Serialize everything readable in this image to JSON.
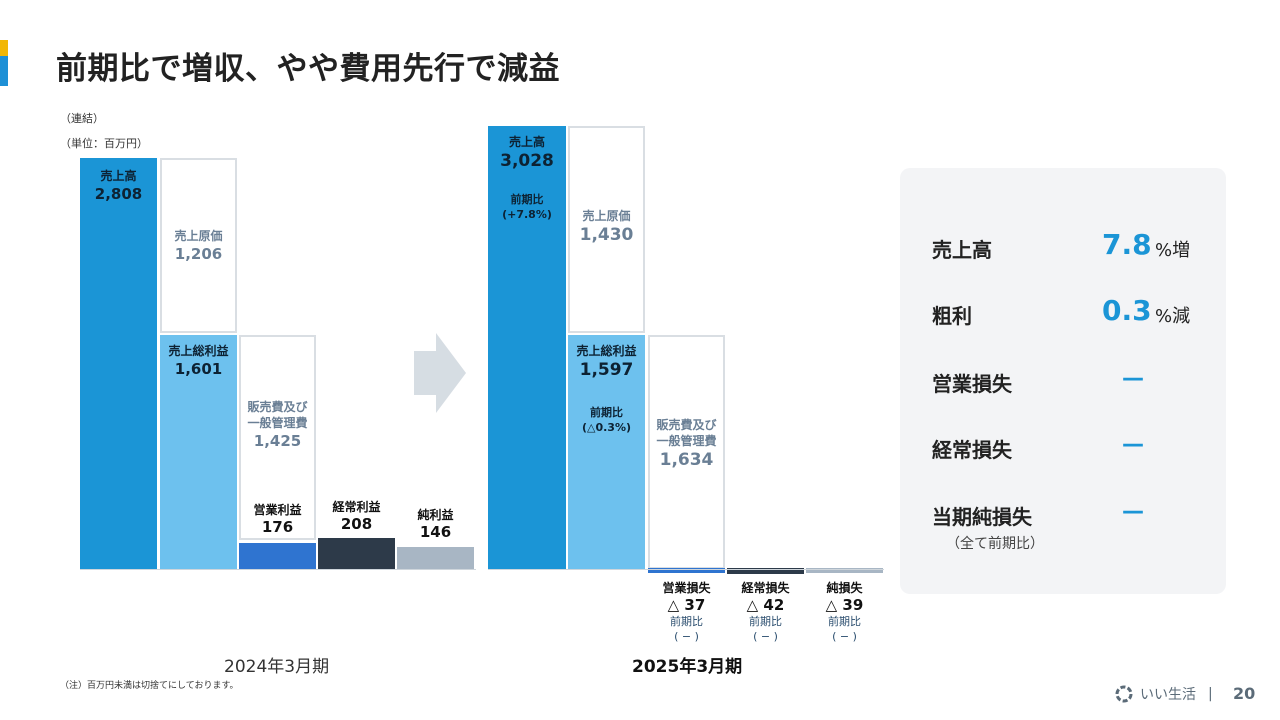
{
  "title": "前期比で増収、やや費用先行で減益",
  "unit_consolidated": "（連結）",
  "unit_label": "（単位：百万円）",
  "colors": {
    "revenue": "#1b95d6",
    "gross_profit": "#6dc1ee",
    "operating": "#2f74d0",
    "ordinary": "#2d3a49",
    "net": "#a8b6c4",
    "outline": "#d9dee3"
  },
  "chart_data": {
    "type": "bar",
    "title": "前期比で増収、やや費用先行で減益",
    "unit": "百万円",
    "periods": [
      {
        "label": "2024年3月期",
        "revenue": {
          "name": "売上高",
          "value": "2,808"
        },
        "cogs": {
          "name": "売上原価",
          "value": "1,206"
        },
        "gross_profit": {
          "name": "売上総利益",
          "value": "1,601"
        },
        "sga": {
          "name_1": "販売費及び",
          "name_2": "一般管理費",
          "value": "1,425"
        },
        "operating": {
          "name": "営業利益",
          "value": "176"
        },
        "ordinary": {
          "name": "経常利益",
          "value": "208"
        },
        "net": {
          "name": "純利益",
          "value": "146"
        }
      },
      {
        "label": "2025年3月期",
        "revenue": {
          "name": "売上高",
          "value": "3,028",
          "yoy_label": "前期比",
          "yoy": "(+7.8%)"
        },
        "cogs": {
          "name": "売上原価",
          "value": "1,430"
        },
        "gross_profit": {
          "name": "売上総利益",
          "value": "1,597",
          "yoy_label": "前期比",
          "yoy": "(△0.3%)"
        },
        "sga": {
          "name_1": "販売費及び",
          "name_2": "一般管理費",
          "value": "1,634"
        },
        "operating": {
          "name": "営業損失",
          "value": "△ 37",
          "yoy_label": "前期比",
          "yoy": "( − )"
        },
        "ordinary": {
          "name": "経常損失",
          "value": "△ 42",
          "yoy_label": "前期比",
          "yoy": "( − )"
        },
        "net": {
          "name": "純損失",
          "value": "△ 39",
          "yoy_label": "前期比",
          "yoy": "( − )"
        }
      }
    ]
  },
  "summary": {
    "rows": [
      {
        "label": "売上高",
        "value": "7.8",
        "unit": "%増"
      },
      {
        "label": "粗利",
        "value": "0.3",
        "unit": "%減"
      },
      {
        "label": "営業損失",
        "dash": "—"
      },
      {
        "label": "経常損失",
        "dash": "—"
      },
      {
        "label": "当期純損失",
        "dash": "—"
      }
    ],
    "note": "（全て前期比）"
  },
  "footnote": "（注）百万円未満は切捨てにしております。",
  "logo_text": "いい生活",
  "separator": "|",
  "page_number": "20"
}
